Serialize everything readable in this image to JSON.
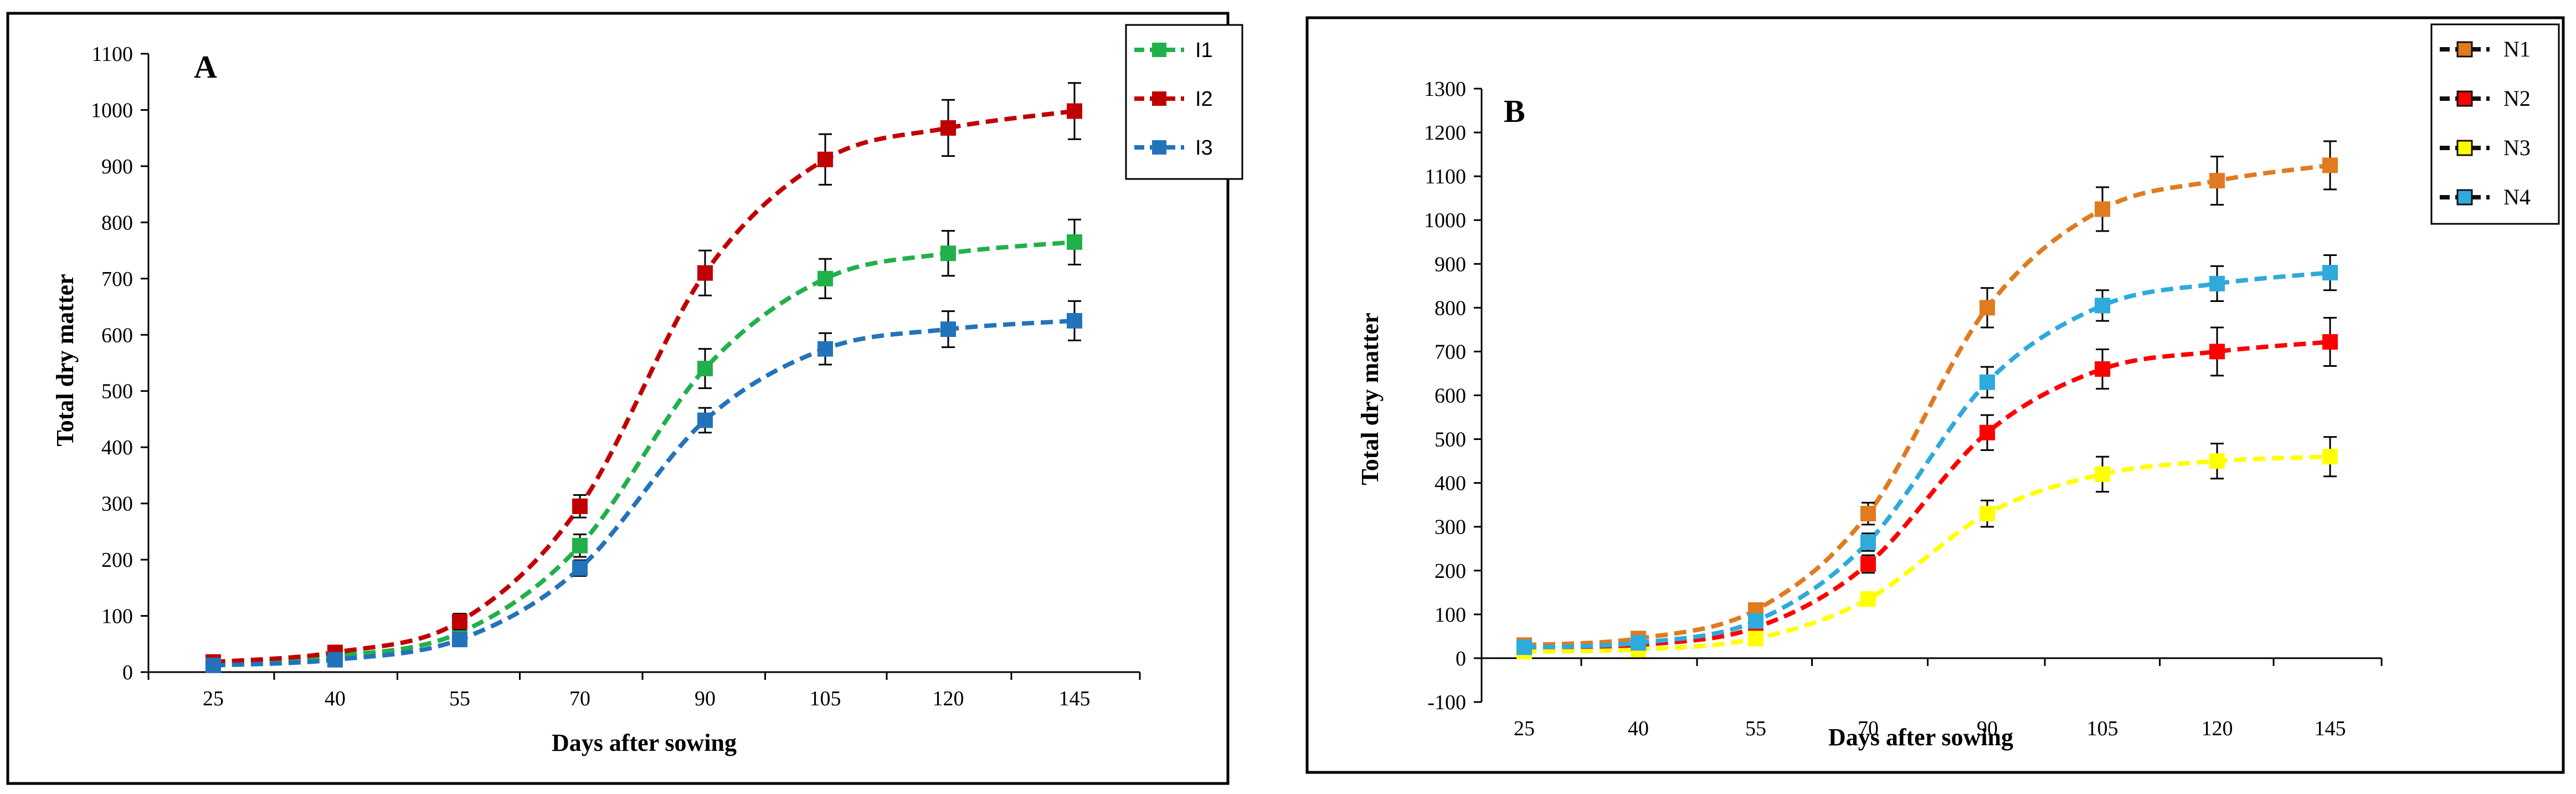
{
  "chart_data": [
    {
      "panel": "A",
      "type": "line",
      "title": "A",
      "xlabel": "Days after sowing",
      "ylabel": "Total  dry matter",
      "categories": [
        "25",
        "40",
        "55",
        "70",
        "90",
        "105",
        "120",
        "145"
      ],
      "ylim": [
        0,
        1100
      ],
      "ystep": 100,
      "grid": false,
      "legend": "top-right",
      "series": [
        {
          "name": "I1",
          "color": "#22b04b",
          "values": [
            15,
            28,
            70,
            225,
            540,
            700,
            745,
            765
          ],
          "errors": [
            6,
            8,
            12,
            20,
            35,
            35,
            40,
            40
          ]
        },
        {
          "name": "I2",
          "color": "#c00000",
          "values": [
            18,
            35,
            90,
            295,
            710,
            912,
            968,
            998
          ],
          "errors": [
            7,
            9,
            14,
            20,
            40,
            45,
            50,
            50
          ]
        },
        {
          "name": "I3",
          "color": "#2373bb",
          "values": [
            12,
            22,
            58,
            185,
            448,
            575,
            610,
            625
          ],
          "errors": [
            5,
            7,
            10,
            14,
            22,
            28,
            32,
            35
          ]
        }
      ]
    },
    {
      "panel": "B",
      "type": "line",
      "title": "B",
      "xlabel": "Days after sowing",
      "ylabel": "Total  dry matter",
      "categories": [
        "25",
        "40",
        "55",
        "70",
        "90",
        "105",
        "120",
        "145"
      ],
      "ylim": [
        -100,
        1300
      ],
      "ystep": 100,
      "grid": false,
      "legend": "top-right",
      "series": [
        {
          "name": "N1",
          "color": "#e07b1f",
          "values": [
            30,
            45,
            110,
            330,
            800,
            1025,
            1090,
            1125
          ],
          "errors": [
            10,
            12,
            15,
            25,
            45,
            50,
            55,
            55
          ]
        },
        {
          "name": "N2",
          "color": "#ff0000",
          "values": [
            20,
            30,
            70,
            215,
            515,
            660,
            700,
            722
          ],
          "errors": [
            8,
            10,
            13,
            20,
            40,
            45,
            55,
            55
          ]
        },
        {
          "name": "N3",
          "color": "#ffff00",
          "values": [
            15,
            20,
            45,
            135,
            330,
            420,
            450,
            460
          ],
          "errors": [
            6,
            8,
            10,
            15,
            30,
            40,
            40,
            45
          ]
        },
        {
          "name": "N4",
          "color": "#2eaadc",
          "values": [
            25,
            35,
            85,
            265,
            630,
            805,
            855,
            880
          ],
          "errors": [
            8,
            10,
            13,
            20,
            35,
            35,
            40,
            40
          ]
        }
      ]
    }
  ]
}
